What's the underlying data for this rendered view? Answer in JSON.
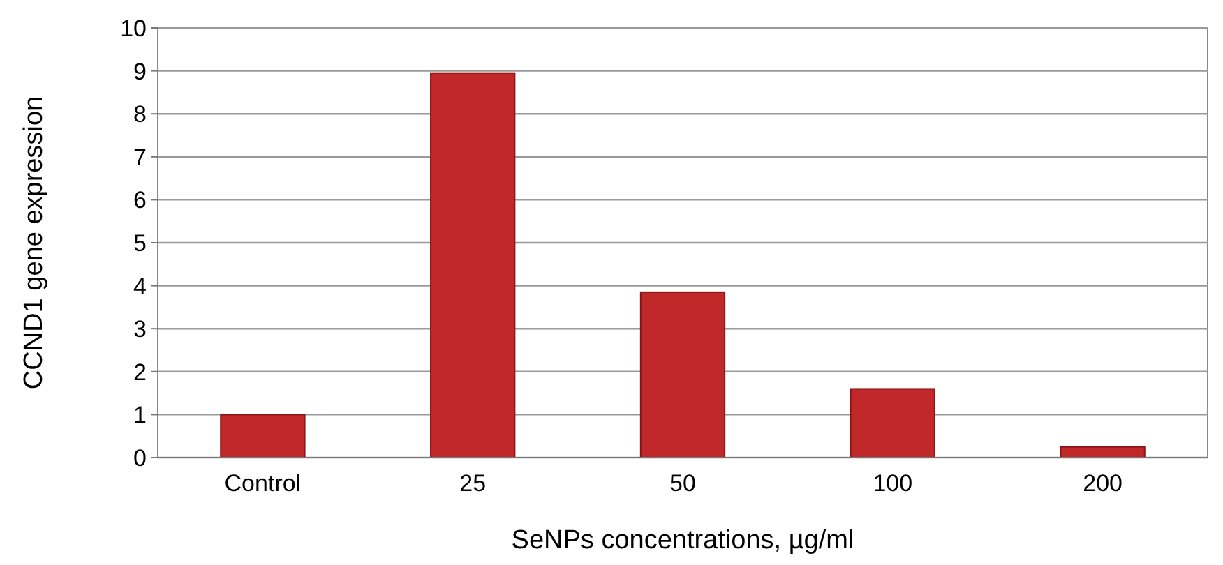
{
  "chart_data": {
    "type": "bar",
    "xlabel": "SeNPs concentrations, µg/ml",
    "ylabel": "CCND1 gene expression",
    "categories": [
      "Control",
      "25",
      "50",
      "100",
      "200"
    ],
    "values": [
      1.0,
      8.95,
      3.85,
      1.6,
      0.25
    ],
    "color": "#c0282a",
    "ylim": [
      0,
      10
    ],
    "yticks": [
      0,
      1,
      2,
      3,
      4,
      5,
      6,
      7,
      8,
      9,
      10
    ],
    "grid": "y"
  }
}
